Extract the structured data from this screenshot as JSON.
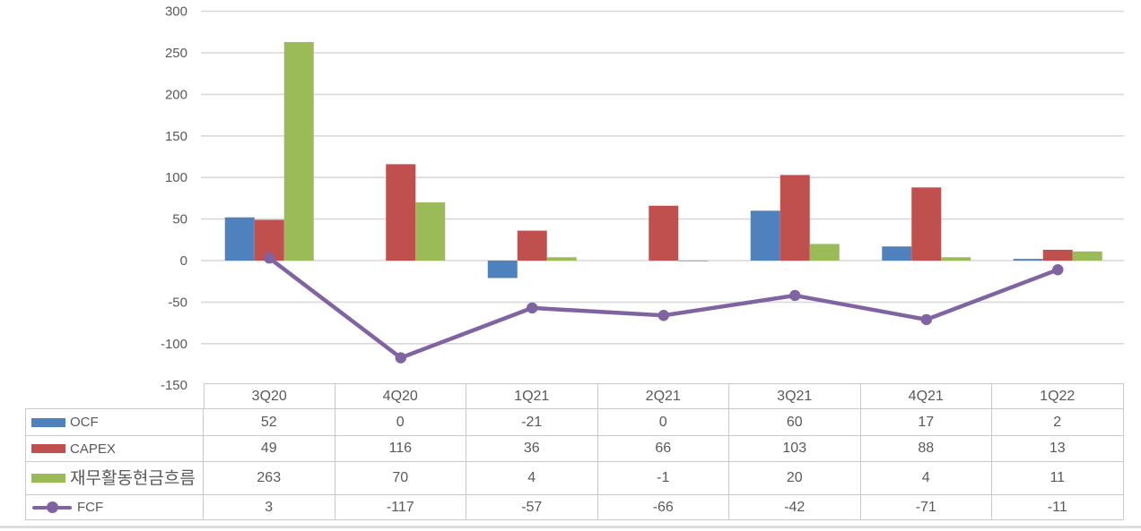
{
  "chart_data": {
    "type": "combo-bar-line",
    "title": "",
    "xlabel": "",
    "ylabel": "",
    "categories": [
      "3Q20",
      "4Q20",
      "1Q21",
      "2Q21",
      "3Q21",
      "4Q21",
      "1Q22"
    ],
    "series": [
      {
        "name": "OCF",
        "type": "bar",
        "color": "#4F81BD",
        "values": [
          52,
          0,
          -21,
          0,
          60,
          17,
          2
        ]
      },
      {
        "name": "CAPEX",
        "type": "bar",
        "color": "#C0504D",
        "values": [
          49,
          116,
          36,
          66,
          103,
          88,
          13
        ]
      },
      {
        "name": "재무활동현금흐름",
        "type": "bar",
        "color": "#9BBB59",
        "values": [
          263,
          70,
          4,
          -1,
          20,
          4,
          11
        ]
      },
      {
        "name": "FCF",
        "type": "line",
        "color": "#8064A2",
        "values": [
          3,
          -117,
          -57,
          -66,
          -42,
          -71,
          -11
        ]
      }
    ],
    "y_axis": {
      "min": -150,
      "max": 300,
      "step": 50,
      "tick_labels": [
        "300",
        "250",
        "200",
        "150",
        "100",
        "50",
        "0",
        "-50",
        "-100",
        "-150"
      ]
    },
    "grid": true,
    "legend_position": "left-column-of-data-table",
    "data_table_shown": true
  },
  "styles": {
    "text_color": "#595959",
    "gridline_color": "#D9D9D9",
    "table_border_color": "#C9C9C9",
    "bottom_rule_color": "#D9D9D9",
    "background": "#FFFFFF"
  }
}
